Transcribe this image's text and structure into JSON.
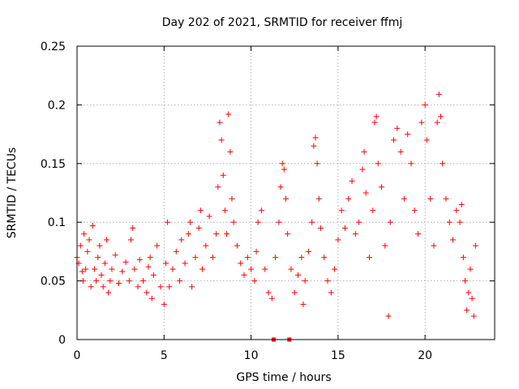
{
  "chart_data": {
    "type": "scatter",
    "title": "Day 202 of 2021, SRMTID for receiver ffmj",
    "xlabel": "GPS time / hours",
    "ylabel": "SRMTID / TECUs",
    "xlim": [
      0,
      24
    ],
    "ylim": [
      0,
      0.25
    ],
    "x_ticks": [
      "0",
      "5",
      "10",
      "15",
      "20"
    ],
    "y_ticks": [
      "0",
      "0.05",
      "0.1",
      "0.15",
      "0.2",
      "0.25"
    ],
    "grid": true,
    "marker": "plus",
    "color": "#ff0000",
    "series": [
      {
        "name": "SRMTID",
        "points": [
          [
            0.0,
            0.07
          ],
          [
            0.1,
            0.065
          ],
          [
            0.2,
            0.08
          ],
          [
            0.3,
            0.058
          ],
          [
            0.35,
            0.05
          ],
          [
            0.4,
            0.09
          ],
          [
            0.5,
            0.06
          ],
          [
            0.6,
            0.075
          ],
          [
            0.7,
            0.085
          ],
          [
            0.8,
            0.045
          ],
          [
            0.9,
            0.097
          ],
          [
            1.0,
            0.06
          ],
          [
            1.1,
            0.05
          ],
          [
            1.2,
            0.07
          ],
          [
            1.3,
            0.08
          ],
          [
            1.4,
            0.055
          ],
          [
            1.5,
            0.045
          ],
          [
            1.6,
            0.065
          ],
          [
            1.7,
            0.085
          ],
          [
            1.8,
            0.04
          ],
          [
            1.9,
            0.05
          ],
          [
            2.0,
            0.06
          ],
          [
            2.2,
            0.072
          ],
          [
            2.4,
            0.048
          ],
          [
            2.6,
            0.058
          ],
          [
            2.8,
            0.066
          ],
          [
            3.0,
            0.05
          ],
          [
            3.1,
            0.085
          ],
          [
            3.2,
            0.095
          ],
          [
            3.3,
            0.06
          ],
          [
            3.5,
            0.045
          ],
          [
            3.6,
            0.068
          ],
          [
            3.8,
            0.05
          ],
          [
            4.0,
            0.04
          ],
          [
            4.1,
            0.062
          ],
          [
            4.2,
            0.07
          ],
          [
            4.3,
            0.035
          ],
          [
            4.4,
            0.055
          ],
          [
            4.6,
            0.08
          ],
          [
            4.8,
            0.045
          ],
          [
            5.0,
            0.03
          ],
          [
            5.1,
            0.065
          ],
          [
            5.2,
            0.1
          ],
          [
            5.3,
            0.045
          ],
          [
            5.5,
            0.06
          ],
          [
            5.7,
            0.075
          ],
          [
            5.9,
            0.05
          ],
          [
            6.0,
            0.085
          ],
          [
            6.2,
            0.065
          ],
          [
            6.4,
            0.09
          ],
          [
            6.5,
            0.1
          ],
          [
            6.6,
            0.045
          ],
          [
            6.8,
            0.07
          ],
          [
            7.0,
            0.095
          ],
          [
            7.1,
            0.11
          ],
          [
            7.2,
            0.06
          ],
          [
            7.4,
            0.08
          ],
          [
            7.6,
            0.105
          ],
          [
            7.8,
            0.07
          ],
          [
            8.0,
            0.09
          ],
          [
            8.1,
            0.13
          ],
          [
            8.2,
            0.185
          ],
          [
            8.3,
            0.17
          ],
          [
            8.4,
            0.14
          ],
          [
            8.5,
            0.11
          ],
          [
            8.6,
            0.09
          ],
          [
            8.7,
            0.192
          ],
          [
            8.8,
            0.16
          ],
          [
            8.9,
            0.12
          ],
          [
            9.0,
            0.1
          ],
          [
            9.2,
            0.08
          ],
          [
            9.4,
            0.065
          ],
          [
            9.6,
            0.055
          ],
          [
            9.8,
            0.07
          ],
          [
            10.0,
            0.06
          ],
          [
            10.2,
            0.05
          ],
          [
            10.3,
            0.075
          ],
          [
            10.4,
            0.1
          ],
          [
            10.6,
            0.11
          ],
          [
            10.8,
            0.06
          ],
          [
            11.0,
            0.04
          ],
          [
            11.2,
            0.035
          ],
          [
            11.4,
            0.07
          ],
          [
            11.6,
            0.1
          ],
          [
            11.7,
            0.13
          ],
          [
            11.8,
            0.15
          ],
          [
            11.9,
            0.145
          ],
          [
            12.0,
            0.12
          ],
          [
            12.1,
            0.09
          ],
          [
            12.3,
            0.06
          ],
          [
            12.5,
            0.04
          ],
          [
            12.7,
            0.055
          ],
          [
            12.9,
            0.07
          ],
          [
            13.0,
            0.03
          ],
          [
            13.1,
            0.05
          ],
          [
            13.3,
            0.075
          ],
          [
            13.5,
            0.1
          ],
          [
            13.6,
            0.165
          ],
          [
            13.7,
            0.172
          ],
          [
            13.8,
            0.15
          ],
          [
            13.9,
            0.12
          ],
          [
            14.0,
            0.095
          ],
          [
            14.2,
            0.07
          ],
          [
            14.4,
            0.05
          ],
          [
            14.6,
            0.04
          ],
          [
            14.8,
            0.06
          ],
          [
            15.0,
            0.085
          ],
          [
            15.2,
            0.11
          ],
          [
            15.4,
            0.095
          ],
          [
            15.6,
            0.12
          ],
          [
            15.8,
            0.135
          ],
          [
            16.0,
            0.09
          ],
          [
            16.2,
            0.1
          ],
          [
            16.4,
            0.145
          ],
          [
            16.5,
            0.16
          ],
          [
            16.6,
            0.125
          ],
          [
            16.8,
            0.07
          ],
          [
            17.0,
            0.11
          ],
          [
            17.1,
            0.185
          ],
          [
            17.2,
            0.19
          ],
          [
            17.3,
            0.15
          ],
          [
            17.5,
            0.13
          ],
          [
            17.7,
            0.08
          ],
          [
            17.9,
            0.02
          ],
          [
            18.0,
            0.1
          ],
          [
            18.2,
            0.17
          ],
          [
            18.4,
            0.18
          ],
          [
            18.6,
            0.16
          ],
          [
            18.8,
            0.12
          ],
          [
            19.0,
            0.175
          ],
          [
            19.2,
            0.15
          ],
          [
            19.4,
            0.11
          ],
          [
            19.6,
            0.09
          ],
          [
            19.8,
            0.185
          ],
          [
            20.0,
            0.2
          ],
          [
            20.1,
            0.17
          ],
          [
            20.3,
            0.12
          ],
          [
            20.5,
            0.08
          ],
          [
            20.7,
            0.185
          ],
          [
            20.8,
            0.209
          ],
          [
            20.9,
            0.19
          ],
          [
            21.0,
            0.15
          ],
          [
            21.2,
            0.12
          ],
          [
            21.4,
            0.1
          ],
          [
            21.6,
            0.085
          ],
          [
            21.8,
            0.11
          ],
          [
            22.0,
            0.1
          ],
          [
            22.1,
            0.115
          ],
          [
            22.2,
            0.07
          ],
          [
            22.3,
            0.05
          ],
          [
            22.4,
            0.025
          ],
          [
            22.5,
            0.04
          ],
          [
            22.6,
            0.06
          ],
          [
            22.7,
            0.035
          ],
          [
            22.8,
            0.02
          ],
          [
            22.9,
            0.08
          ]
        ]
      }
    ],
    "rug_markers": [
      {
        "x": 11.3,
        "y": 0
      },
      {
        "x": 12.2,
        "y": 0
      }
    ]
  }
}
